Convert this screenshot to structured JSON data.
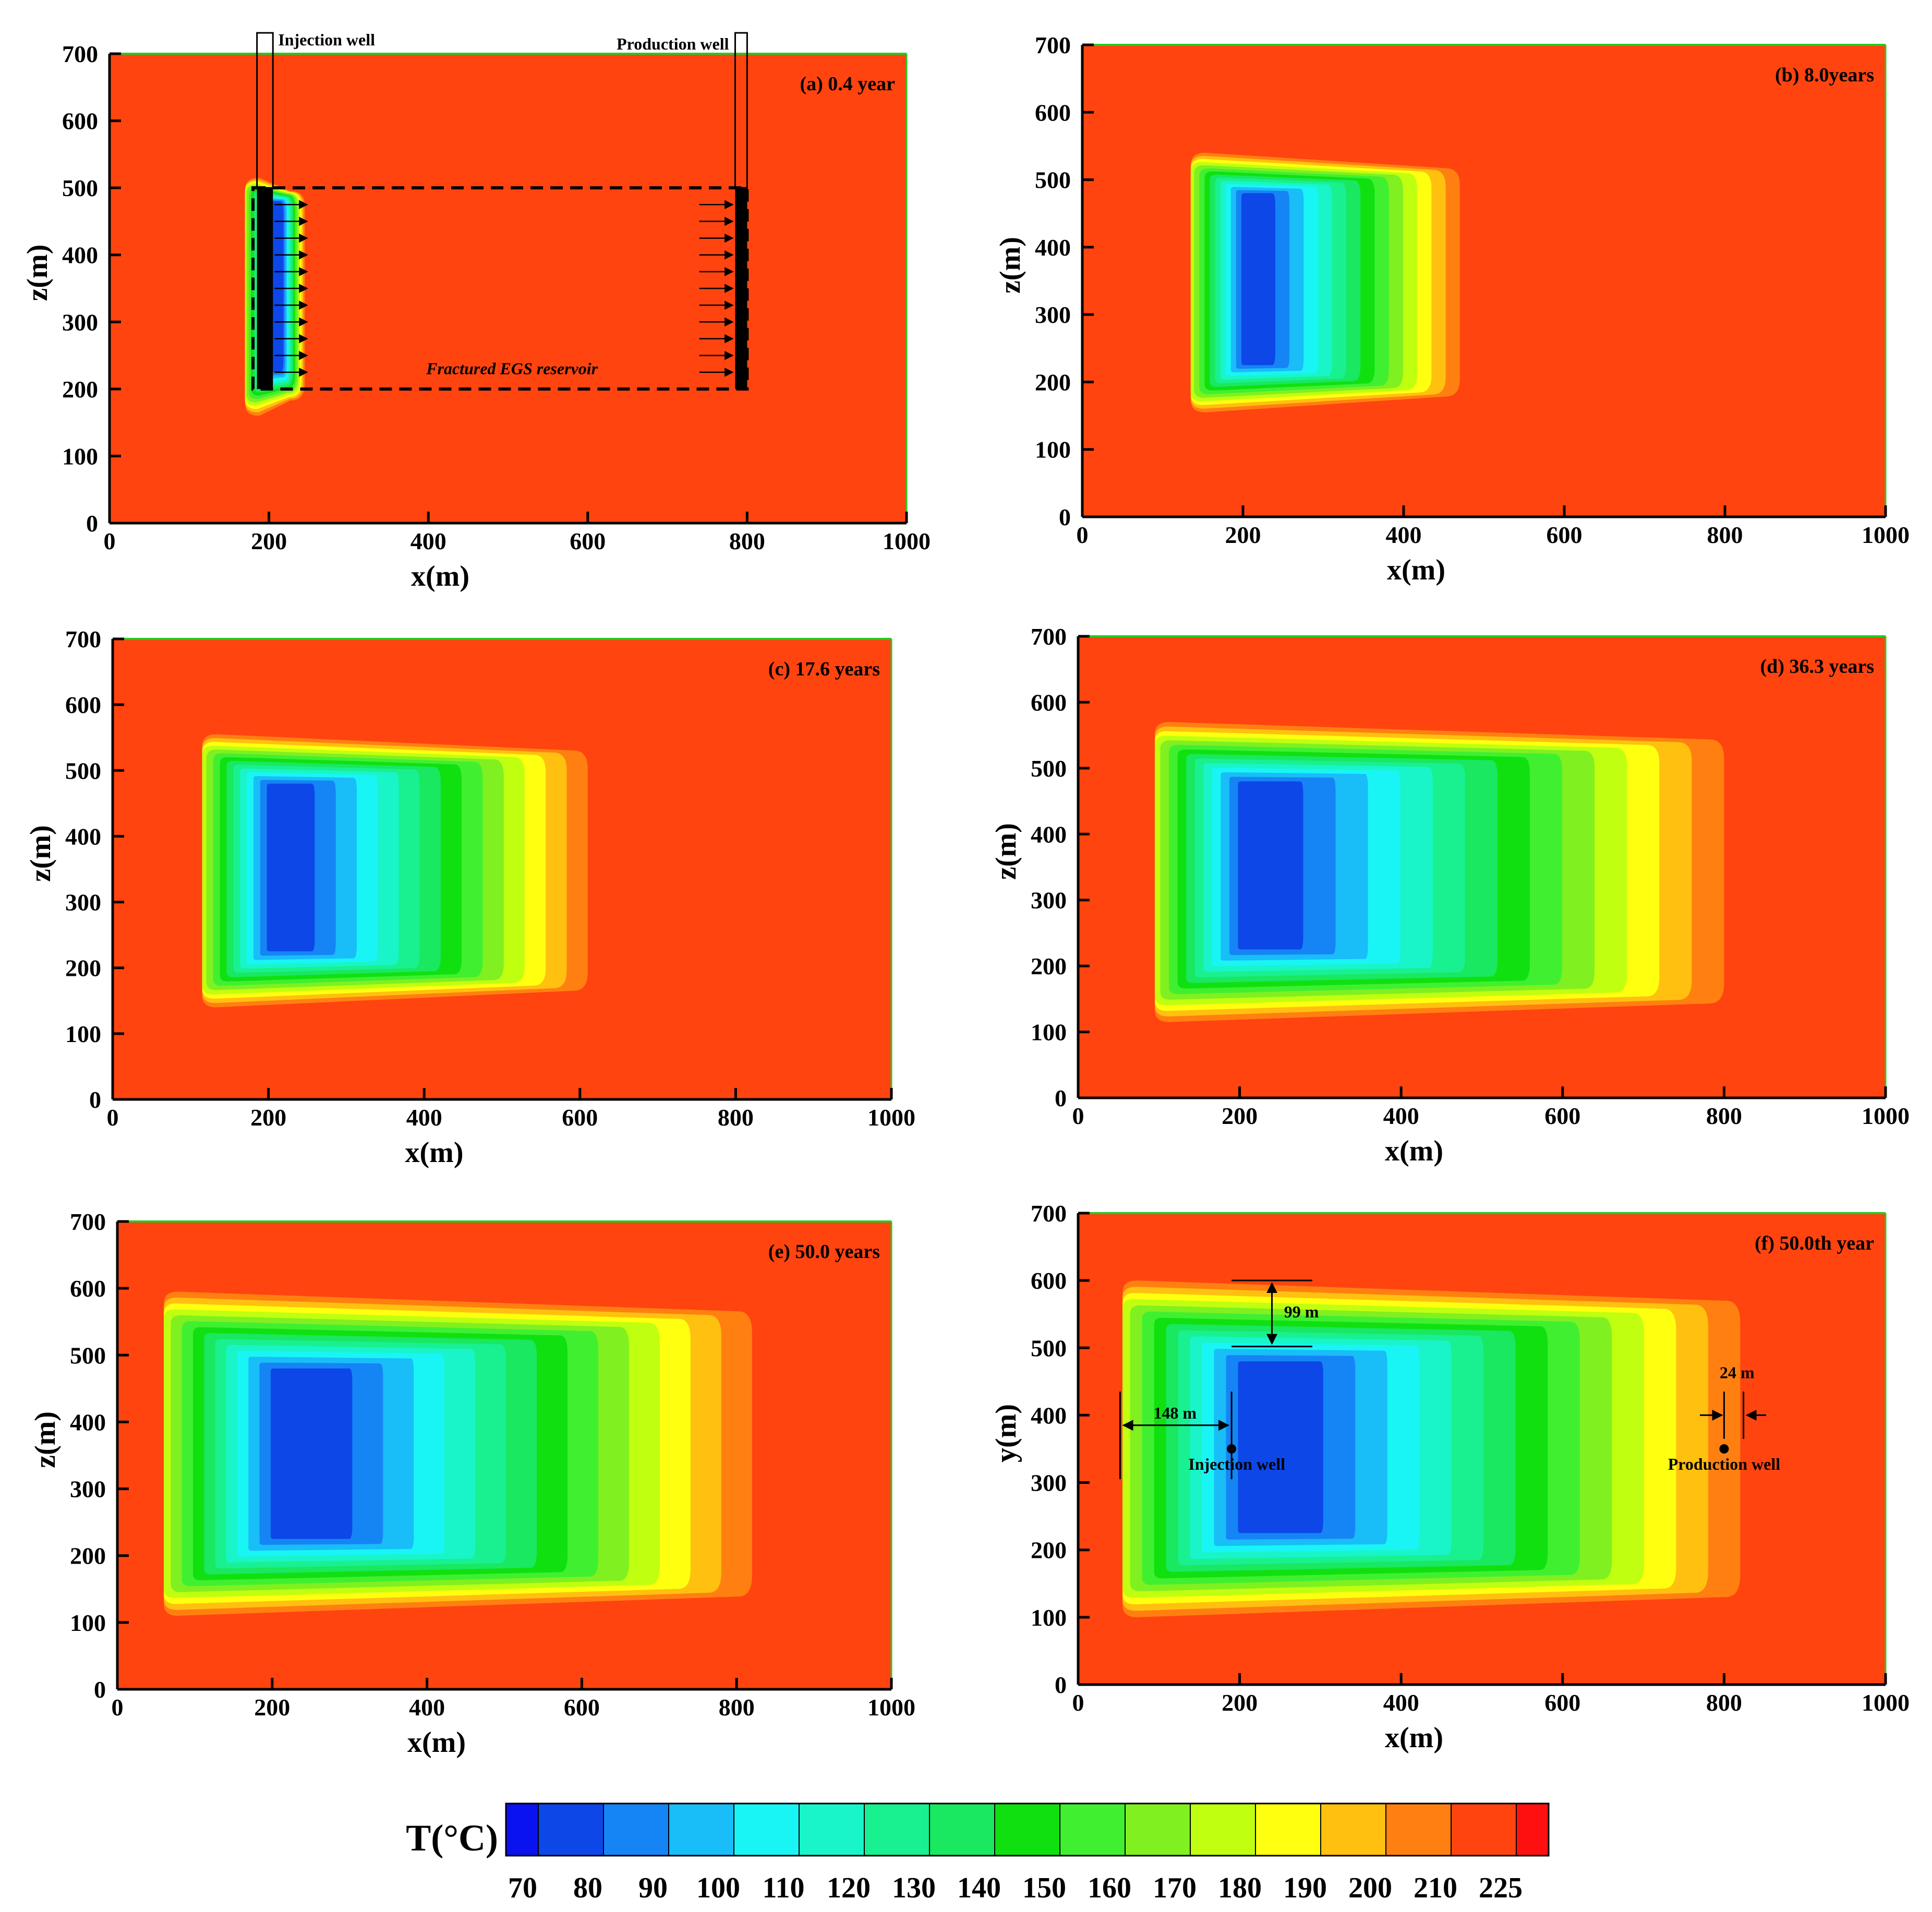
{
  "chart_data": {
    "type": "heatmap",
    "panels": [
      {
        "id": "a",
        "title": "(a) 0.4 year",
        "xlabel": "x(m)",
        "ylabel": "z(m)",
        "xlim": [
          0,
          1000
        ],
        "ylim": [
          0,
          700
        ],
        "xticks": [
          "0",
          "200",
          "400",
          "600",
          "800",
          "1000"
        ],
        "yticks": [
          "0",
          "100",
          "200",
          "300",
          "400",
          "500",
          "600",
          "700"
        ],
        "plume": {
          "x_min": 170,
          "x_max": 245,
          "z_min": 160,
          "z_max": 515,
          "front_x_cool": 225
        },
        "annotations": {
          "injection_well": "Injection well",
          "production_well": "Production well",
          "reservoir": "Fractured EGS reservoir"
        }
      },
      {
        "id": "b",
        "title": "(b) 8.0years",
        "xlabel": "x(m)",
        "ylabel": "z(m)",
        "xlim": [
          0,
          1000
        ],
        "ylim": [
          0,
          700
        ],
        "xticks": [
          "0",
          "200",
          "400",
          "600",
          "800",
          "1000"
        ],
        "yticks": [
          "0",
          "100",
          "200",
          "300",
          "400",
          "500",
          "600",
          "700"
        ],
        "plume": {
          "x_min": 135,
          "x_max": 470,
          "z_min": 155,
          "z_max": 540,
          "front_x_cool": 265
        }
      },
      {
        "id": "c",
        "title": "(c) 17.6 years",
        "xlabel": "x(m)",
        "ylabel": "z(m)",
        "xlim": [
          0,
          1000
        ],
        "ylim": [
          0,
          700
        ],
        "xticks": [
          "0",
          "200",
          "400",
          "600",
          "800",
          "1000"
        ],
        "yticks": [
          "0",
          "100",
          "200",
          "300",
          "400",
          "500",
          "600",
          "700"
        ],
        "plume": {
          "x_min": 115,
          "x_max": 610,
          "z_min": 140,
          "z_max": 555,
          "front_x_cool": 300
        }
      },
      {
        "id": "d",
        "title": "(d) 36.3 years",
        "xlabel": "x(m)",
        "ylabel": "z(m)",
        "xlim": [
          0,
          1000
        ],
        "ylim": [
          0,
          700
        ],
        "xticks": [
          "0",
          "200",
          "400",
          "600",
          "800",
          "1000"
        ],
        "yticks": [
          "0",
          "100",
          "200",
          "300",
          "400",
          "500",
          "600",
          "700"
        ],
        "plume": {
          "x_min": 95,
          "x_max": 800,
          "z_min": 115,
          "z_max": 570,
          "front_x_cool": 335
        }
      },
      {
        "id": "e",
        "title": "(e) 50.0 years",
        "xlabel": "x(m)",
        "ylabel": "z(m)",
        "xlim": [
          0,
          1000
        ],
        "ylim": [
          0,
          700
        ],
        "xticks": [
          "0",
          "200",
          "400",
          "600",
          "800",
          "1000"
        ],
        "yticks": [
          "0",
          "100",
          "200",
          "300",
          "400",
          "500",
          "600",
          "700"
        ],
        "plume": {
          "x_min": 60,
          "x_max": 820,
          "z_min": 110,
          "z_max": 595,
          "front_x_cool": 380
        }
      },
      {
        "id": "f",
        "title": "(f) 50.0th year",
        "xlabel": "x(m)",
        "ylabel": "y(m)",
        "xlim": [
          0,
          1000
        ],
        "ylim": [
          0,
          700
        ],
        "xticks": [
          "0",
          "200",
          "400",
          "600",
          "800",
          "1000"
        ],
        "yticks": [
          "0",
          "100",
          "200",
          "300",
          "400",
          "500",
          "600",
          "700"
        ],
        "plume": {
          "x_min": 55,
          "x_max": 820,
          "z_min": 100,
          "z_max": 600,
          "front_x_cool": 380
        },
        "annotations": {
          "dim_top": "99 m",
          "dim_left": "148 m",
          "dim_right": "24 m",
          "injection_well": "Injection well",
          "production_well": "Production well",
          "injection_point": [
            190,
            350
          ],
          "production_point": [
            800,
            350
          ]
        }
      }
    ],
    "colorbar": {
      "title": "T(°C)",
      "tick_labels": [
        "70",
        "80",
        "90",
        "100",
        "110",
        "120",
        "130",
        "140",
        "150",
        "160",
        "170",
        "180",
        "190",
        "200",
        "210",
        "225"
      ],
      "colors": [
        "#0a12f0",
        "#0d47e8",
        "#1585f5",
        "#19bdf8",
        "#19f5f5",
        "#19f5c8",
        "#19f090",
        "#19e860",
        "#10e010",
        "#40f030",
        "#80f020",
        "#c0ff10",
        "#ffff10",
        "#ffc010",
        "#ff8010",
        "#ff4410",
        "#ff1010"
      ]
    }
  }
}
